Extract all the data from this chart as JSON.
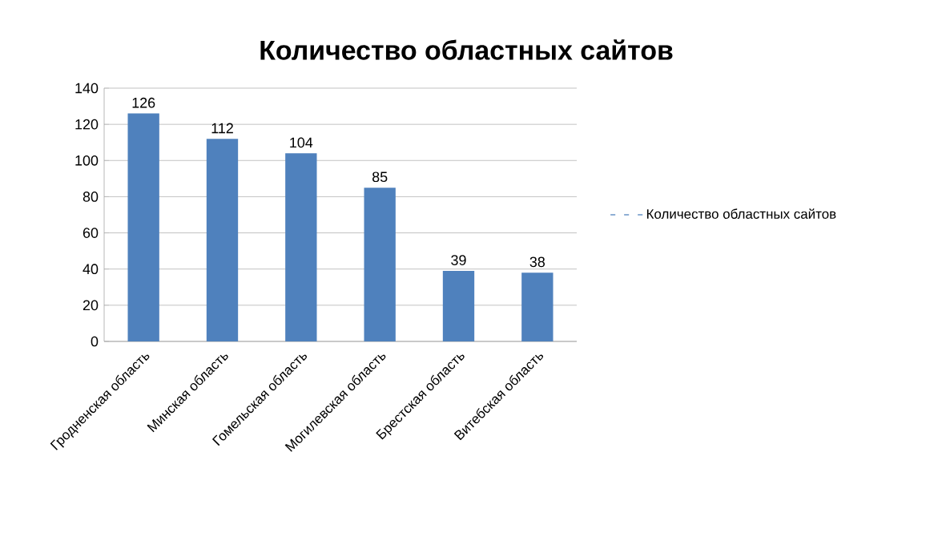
{
  "chart_data": {
    "type": "bar",
    "title": "Количество областных сайтов",
    "categories": [
      "Гродненская область",
      "Минская область",
      "Гомельская область",
      "Могилевская область",
      "Брестская область",
      "Витебская область"
    ],
    "series": [
      {
        "name": "Количество областных сайтов",
        "color": "#4f81bd",
        "values": [
          126,
          112,
          104,
          85,
          39,
          38
        ]
      }
    ],
    "ylim": [
      0,
      140
    ],
    "yticks": [
      0,
      20,
      40,
      60,
      80,
      100,
      120,
      140
    ],
    "grid": "y",
    "legend": "right",
    "data_labels": true
  }
}
